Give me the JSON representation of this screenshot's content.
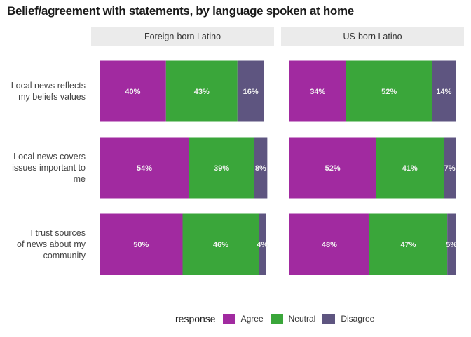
{
  "chart_data": {
    "type": "bar",
    "orientation": "horizontal",
    "stacked": true,
    "title": "Belief/agreement with statements, by language spoken at home",
    "xlim": [
      0,
      100
    ],
    "categories": [
      "Local news reflects my beliefs values",
      "Local news covers issues important to me",
      "I trust sources of news about my community"
    ],
    "facets": [
      {
        "label": "Foreign-born Latino",
        "series": [
          {
            "name": "Agree",
            "values": [
              40,
              54,
              50
            ]
          },
          {
            "name": "Neutral",
            "values": [
              43,
              39,
              46
            ]
          },
          {
            "name": "Disagree",
            "values": [
              16,
              8,
              4
            ]
          }
        ]
      },
      {
        "label": "US-born Latino",
        "series": [
          {
            "name": "Agree",
            "values": [
              34,
              52,
              48
            ]
          },
          {
            "name": "Neutral",
            "values": [
              52,
              41,
              47
            ]
          },
          {
            "name": "Disagree",
            "values": [
              14,
              7,
              5
            ]
          }
        ]
      }
    ],
    "legend": {
      "title": "response",
      "position": "bottom",
      "items": [
        "Agree",
        "Neutral",
        "Disagree"
      ]
    },
    "colors": {
      "Agree": "#a12aa0",
      "Neutral": "#3aa63a",
      "Disagree": "#5e5580",
      "strip": "#ebebeb"
    },
    "grid": false
  }
}
